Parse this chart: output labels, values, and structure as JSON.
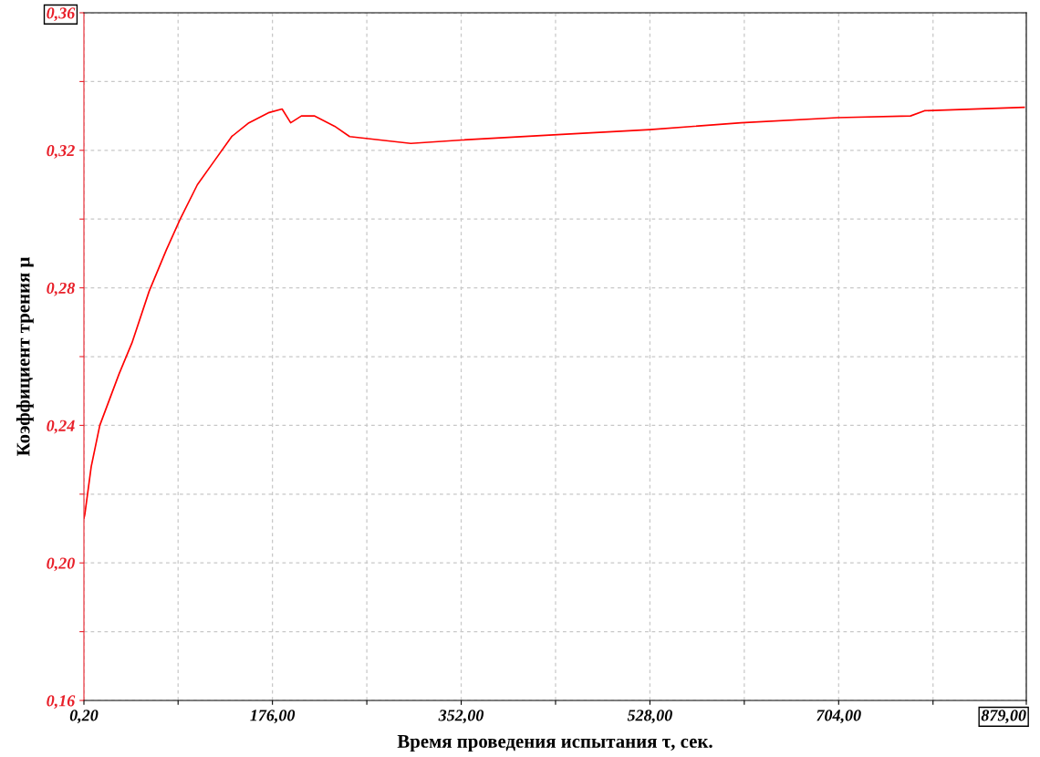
{
  "chart_data": {
    "type": "line",
    "xlabel": "Время проведения испытания τ, сек.",
    "ylabel": "Коэффициент трения μ",
    "x": [
      0.2,
      1,
      7,
      15,
      33,
      45,
      61,
      77,
      90,
      106,
      122,
      138,
      154,
      173,
      185,
      193,
      203,
      215,
      234,
      248,
      305,
      353,
      438,
      528,
      613,
      703,
      771,
      784,
      877
    ],
    "series": [
      {
        "color": "#ff0000",
        "values": [
          0.213,
          0.214,
          0.228,
          0.24,
          0.255,
          0.264,
          0.279,
          0.291,
          0.3,
          0.31,
          0.317,
          0.324,
          0.328,
          0.331,
          0.332,
          0.328,
          0.33,
          0.33,
          0.327,
          0.324,
          0.322,
          0.323,
          0.3245,
          0.326,
          0.328,
          0.3295,
          0.33,
          0.3315,
          0.3325
        ]
      }
    ],
    "xlim": [
      0.2,
      879
    ],
    "xticks": [
      {
        "value": 0.2,
        "label": "0,20"
      },
      {
        "value": 88,
        "label": null
      },
      {
        "value": 176,
        "label": "176,00"
      },
      {
        "value": 264,
        "label": null
      },
      {
        "value": 352,
        "label": "352,00"
      },
      {
        "value": 440,
        "label": null
      },
      {
        "value": 528,
        "label": "528,00"
      },
      {
        "value": 616,
        "label": null
      },
      {
        "value": 704,
        "label": "704,00"
      },
      {
        "value": 792,
        "label": null
      },
      {
        "value": 879,
        "label": "879,00"
      }
    ],
    "ylim": [
      0.16,
      0.36
    ],
    "yticks": [
      {
        "value": 0.16,
        "label": "0,16"
      },
      {
        "value": 0.18,
        "label": null
      },
      {
        "value": 0.2,
        "label": "0,20"
      },
      {
        "value": 0.22,
        "label": null
      },
      {
        "value": 0.24,
        "label": "0,24"
      },
      {
        "value": 0.26,
        "label": null
      },
      {
        "value": 0.28,
        "label": "0,28"
      },
      {
        "value": 0.3,
        "label": null
      },
      {
        "value": 0.32,
        "label": "0,32"
      },
      {
        "value": 0.34,
        "label": null
      },
      {
        "value": 0.36,
        "label": "0,36"
      }
    ],
    "grid": true,
    "marker": "none",
    "line_style": "solid"
  }
}
